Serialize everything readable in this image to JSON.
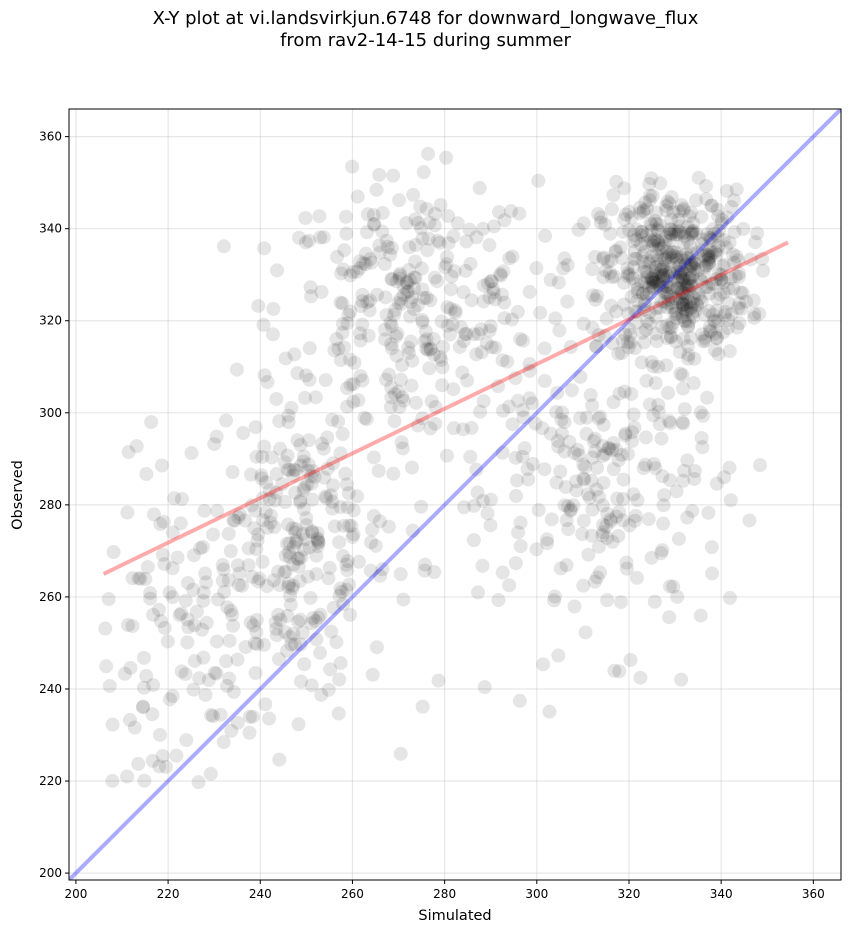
{
  "chart_data": {
    "type": "scatter",
    "title_line1": "X-Y plot at vi.landsvirkjun.6748 for downward_longwave_flux",
    "title_line2": "from rav2-14-15 during summer",
    "xlabel": "Simulated",
    "ylabel": "Observed",
    "xlim": [
      198.5,
      366
    ],
    "ylim": [
      198.5,
      366
    ],
    "xticks": [
      200,
      220,
      240,
      260,
      280,
      300,
      320,
      340,
      360
    ],
    "yticks": [
      200,
      220,
      240,
      260,
      280,
      300,
      320,
      340,
      360
    ],
    "grid": true,
    "point_color": "#000000",
    "point_alpha": 0.1,
    "identity_line": {
      "color": "#0000ff",
      "from": [
        198.5,
        198.5
      ],
      "to": [
        366,
        366
      ]
    },
    "fit_line": {
      "color": "#ff0000",
      "from": [
        206,
        265
      ],
      "to": [
        354.5,
        337
      ]
    },
    "point_clusters": [
      {
        "name": "low-left",
        "center": [
          222,
          248
        ],
        "spread": [
          9,
          20
        ],
        "count": 120
      },
      {
        "name": "mid-left",
        "center": [
          248,
          272
        ],
        "spread": [
          10,
          18
        ],
        "count": 260
      },
      {
        "name": "upper-middle",
        "center": [
          272,
          322
        ],
        "spread": [
          14,
          14
        ],
        "count": 260
      },
      {
        "name": "dense-upper-right",
        "center": [
          330,
          330
        ],
        "spread": [
          8,
          9
        ],
        "count": 480
      },
      {
        "name": "lower-right",
        "center": [
          318,
          282
        ],
        "spread": [
          12,
          16
        ],
        "count": 180
      },
      {
        "name": "scattered-middle",
        "center": [
          295,
          300
        ],
        "spread": [
          18,
          28
        ],
        "count": 120
      }
    ]
  }
}
